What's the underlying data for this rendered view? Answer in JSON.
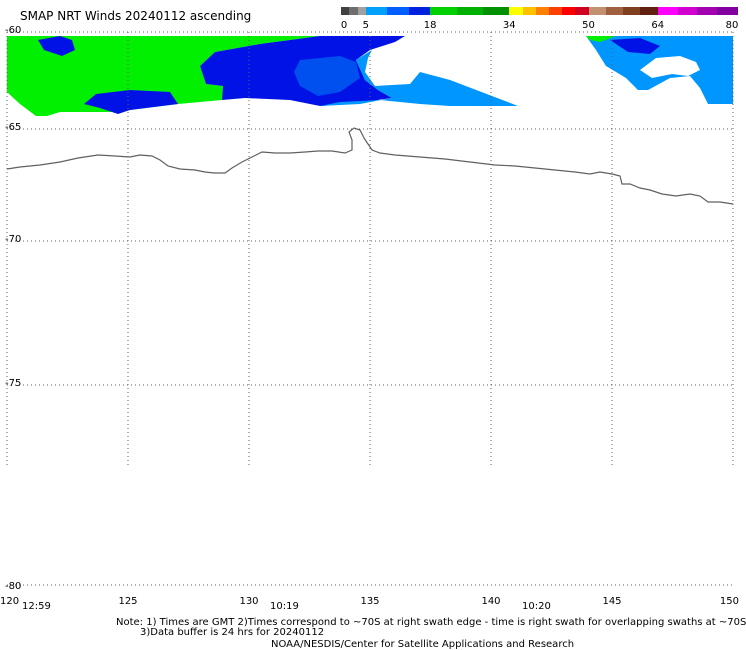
{
  "title": "SMAP NRT Winds 20240112 ascending",
  "colorbar": {
    "labels": [
      "0",
      "5",
      "18",
      "34",
      "50",
      "64",
      "80"
    ],
    "segments": [
      {
        "from": 0,
        "to": 5,
        "colors": [
          "#404040",
          "#6e6e6e",
          "#a0a0a0"
        ]
      },
      {
        "from": 5,
        "to": 18,
        "colors": [
          "#00a0ff",
          "#0060ff",
          "#0020e0"
        ]
      },
      {
        "from": 18,
        "to": 34,
        "colors": [
          "#00d000",
          "#00b000",
          "#009000"
        ]
      },
      {
        "from": 34,
        "to": 50,
        "colors": [
          "#ffff00",
          "#ffc000",
          "#ff8000",
          "#ff4000",
          "#ff0000",
          "#d00020"
        ]
      },
      {
        "from": 50,
        "to": 64,
        "colors": [
          "#c09070",
          "#a06040",
          "#804020",
          "#602010"
        ]
      },
      {
        "from": 64,
        "to": 80,
        "colors": [
          "#ff00ff",
          "#d000d0",
          "#a000b0",
          "#8000a0"
        ]
      }
    ]
  },
  "map": {
    "lat_labels": [
      "-60",
      "-65",
      "-70",
      "-75",
      "-80"
    ],
    "lon_labels": [
      "120",
      "125",
      "130",
      "135",
      "140",
      "145",
      "150"
    ],
    "time_labels": [
      "12:59",
      "10:19",
      "10:20"
    ]
  },
  "notes": {
    "line1": "Note: 1) Times are GMT 2)Times correspond to ~70S at right swath edge - time is right swath for overlapping swaths at ~70S",
    "line2": "3)Data buffer is 24 hrs for 20240112",
    "line3": "NOAA/NESDIS/Center for Satellite Applications and Research"
  },
  "colors": {
    "green": "#00f000",
    "light_blue": "#0096ff",
    "dark_blue": "#0012e6",
    "mid_blue": "#0050f0",
    "coast": "#606060",
    "grid": "#606060"
  }
}
